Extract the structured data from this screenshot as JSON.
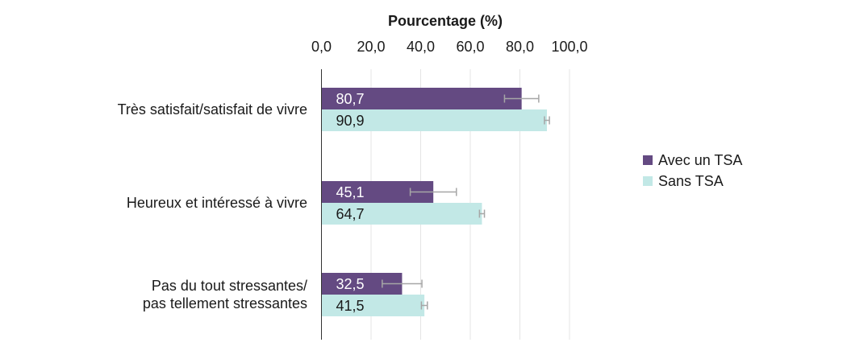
{
  "chart_data": {
    "type": "bar",
    "orientation": "horizontal",
    "xlabel": "Pourcentage (%)",
    "xlim": [
      0,
      100
    ],
    "x_ticks": [
      "0,0",
      "20,0",
      "40,0",
      "60,0",
      "80,0",
      "100,0"
    ],
    "grid": true,
    "legend_position": "right",
    "categories": [
      [
        "Très satisfait/satisfait de vivre"
      ],
      [
        "Heureux et intéressé à vivre"
      ],
      [
        "Pas du tout stressantes/",
        "pas tellement stressantes"
      ]
    ],
    "series": [
      {
        "name": "Avec un TSA",
        "color": "#644a82",
        "label_color": "#ffffff",
        "values": [
          80.7,
          45.1,
          32.5
        ],
        "labels": [
          "80,7",
          "45,1",
          "32,5"
        ],
        "error_low": [
          73.8,
          35.8,
          24.5
        ],
        "error_high": [
          87.6,
          54.4,
          40.5
        ]
      },
      {
        "name": "Sans TSA",
        "color": "#c2e8e6",
        "label_color": "#1a1a1a",
        "values": [
          90.9,
          64.7,
          41.5
        ],
        "labels": [
          "90,9",
          "64,7",
          "41,5"
        ],
        "error_low": [
          89.9,
          63.7,
          40.3
        ],
        "error_high": [
          91.9,
          65.7,
          42.7
        ]
      }
    ]
  }
}
